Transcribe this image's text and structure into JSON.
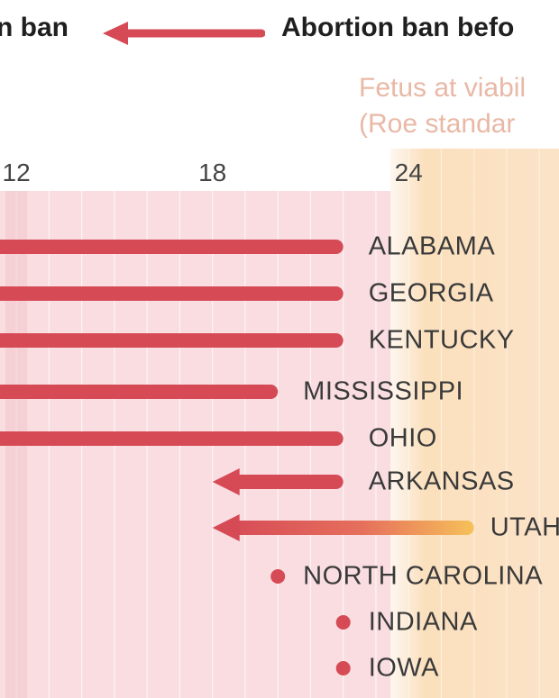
{
  "header": {
    "left_label": "n ban",
    "right_label": "Abortion ban befo",
    "viability_line1": "Fetus at viabil",
    "viability_line2": "(Roe standar"
  },
  "colors": {
    "arrow": "#d64a56",
    "band_pink": "#f9dde0",
    "band_orange": "#fbe3c8",
    "dot": "#d64a56",
    "header_arrow": "#d64a56"
  },
  "chart_data": {
    "type": "bar",
    "xlabel": "",
    "ylabel": "",
    "x_ticks": [
      12,
      18,
      24
    ],
    "xlim": [
      11.5,
      28.6
    ],
    "viability_band_start_week": 24,
    "grid": true,
    "rows": [
      {
        "state": "ALABAMA",
        "kind": "bar",
        "start": null,
        "end": 22
      },
      {
        "state": "GEORGIA",
        "kind": "bar",
        "start": null,
        "end": 22
      },
      {
        "state": "KENTUCKY",
        "kind": "bar",
        "start": null,
        "end": 22
      },
      {
        "state": "MISSISSIPPI",
        "kind": "bar",
        "start": null,
        "end": 20
      },
      {
        "state": "OHIO",
        "kind": "bar",
        "start": null,
        "end": 22
      },
      {
        "state": "ARKANSAS",
        "kind": "arrow",
        "start": 22,
        "end": 18
      },
      {
        "state": "UTAH",
        "kind": "arrow-fade",
        "start": 26,
        "end": 18
      },
      {
        "state": "NORTH CAROLINA",
        "kind": "dot",
        "start": null,
        "end": 20
      },
      {
        "state": "INDIANA",
        "kind": "dot",
        "start": null,
        "end": 22
      },
      {
        "state": "IOWA",
        "kind": "dot",
        "start": null,
        "end": 22
      }
    ]
  }
}
